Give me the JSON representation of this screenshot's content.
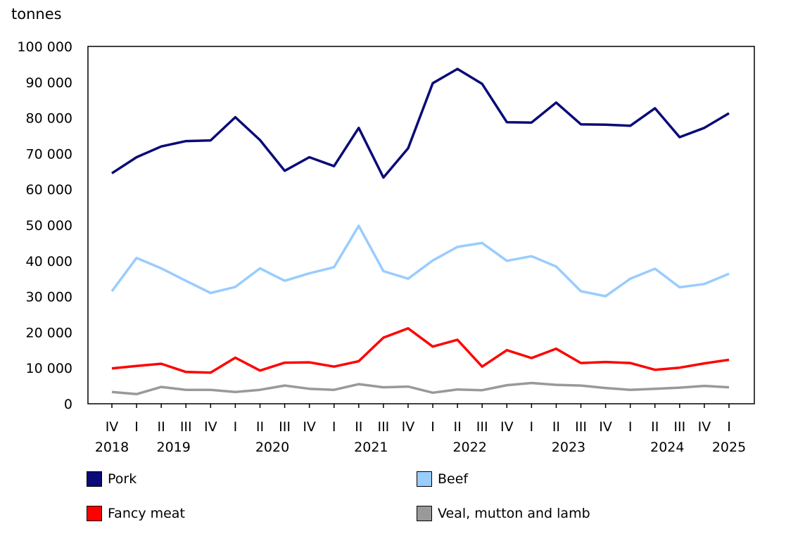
{
  "chart_data": {
    "type": "line",
    "ylabel": "tonnes",
    "ylim": [
      0,
      100000
    ],
    "yticks": [
      "0",
      "10 000",
      "20 000",
      "30 000",
      "40 000",
      "50 000",
      "60 000",
      "70 000",
      "80 000",
      "90 000",
      "100 000"
    ],
    "quarters": [
      "IV",
      "I",
      "II",
      "III",
      "IV",
      "I",
      "II",
      "III",
      "IV",
      "I",
      "II",
      "III",
      "IV",
      "I",
      "II",
      "III",
      "IV",
      "I",
      "II",
      "III",
      "IV",
      "I",
      "II",
      "III",
      "IV",
      "I"
    ],
    "years": [
      "2018",
      "2019",
      "2020",
      "2021",
      "2022",
      "2023",
      "2024",
      "2025"
    ],
    "grid": false,
    "legend": "bottom",
    "series": [
      {
        "name": "Pork",
        "color": "#0a0a78",
        "values": [
          64500,
          69000,
          72000,
          73500,
          73700,
          80200,
          73800,
          65200,
          69000,
          66500,
          77200,
          63300,
          71500,
          89700,
          93700,
          89500,
          78800,
          78700,
          84300,
          78200,
          78100,
          77800,
          82700,
          74600,
          77200,
          81300
        ]
      },
      {
        "name": "Beef",
        "color": "#99ccff",
        "values": [
          31500,
          40800,
          37900,
          34400,
          31000,
          32700,
          37900,
          34400,
          36500,
          38200,
          49800,
          37100,
          35000,
          40100,
          43900,
          45000,
          40000,
          41300,
          38400,
          31500,
          30100,
          35000,
          37800,
          32600,
          33500,
          36400
        ]
      },
      {
        "name": "Fancy meat",
        "color": "#ff0000",
        "values": [
          9900,
          10600,
          11200,
          8900,
          8700,
          12900,
          9300,
          11500,
          11600,
          10400,
          11900,
          18500,
          21100,
          16000,
          17900,
          10400,
          15000,
          12800,
          15400,
          11400,
          11700,
          11400,
          9500,
          10100,
          11300,
          12300
        ]
      },
      {
        "name": "Veal, mutton and lamb",
        "color": "#999999",
        "values": [
          3300,
          2700,
          4700,
          3900,
          3900,
          3300,
          3900,
          5100,
          4200,
          3900,
          5500,
          4600,
          4800,
          3100,
          4000,
          3800,
          5200,
          5800,
          5300,
          5100,
          4400,
          3900,
          4200,
          4500,
          5000,
          4600
        ]
      }
    ]
  }
}
